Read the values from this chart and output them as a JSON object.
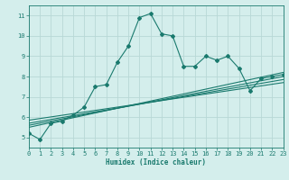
{
  "xlabel": "Humidex (Indice chaleur)",
  "bg_color": "#d4eeec",
  "grid_color": "#b8d8d6",
  "line_color": "#1a7a6e",
  "xmin": 0,
  "xmax": 23,
  "ymin": 4.5,
  "ymax": 11.5,
  "yticks": [
    5,
    6,
    7,
    8,
    9,
    10,
    11
  ],
  "xticks": [
    0,
    1,
    2,
    3,
    4,
    5,
    6,
    7,
    8,
    9,
    10,
    11,
    12,
    13,
    14,
    15,
    16,
    17,
    18,
    19,
    20,
    21,
    22,
    23
  ],
  "series1_x": [
    0,
    1,
    2,
    3,
    4,
    5,
    6,
    7,
    8,
    9,
    10,
    11,
    12,
    13,
    14,
    15,
    16,
    17,
    18,
    19,
    20,
    21,
    22,
    23
  ],
  "series1_y": [
    5.2,
    4.9,
    5.7,
    5.8,
    6.1,
    6.5,
    7.5,
    7.6,
    8.7,
    9.5,
    10.9,
    11.1,
    10.1,
    10.0,
    8.5,
    8.5,
    9.0,
    8.8,
    9.0,
    8.4,
    7.3,
    7.9,
    8.0,
    8.1
  ],
  "linear_lines": [
    {
      "x": [
        0,
        23
      ],
      "y": [
        5.5,
        8.2
      ]
    },
    {
      "x": [
        0,
        23
      ],
      "y": [
        5.6,
        8.0
      ]
    },
    {
      "x": [
        0,
        23
      ],
      "y": [
        5.7,
        7.85
      ]
    },
    {
      "x": [
        0,
        23
      ],
      "y": [
        5.85,
        7.7
      ]
    }
  ],
  "tick_fontsize": 5,
  "xlabel_fontsize": 5.5,
  "lw": 0.8,
  "marker_size": 2.0
}
